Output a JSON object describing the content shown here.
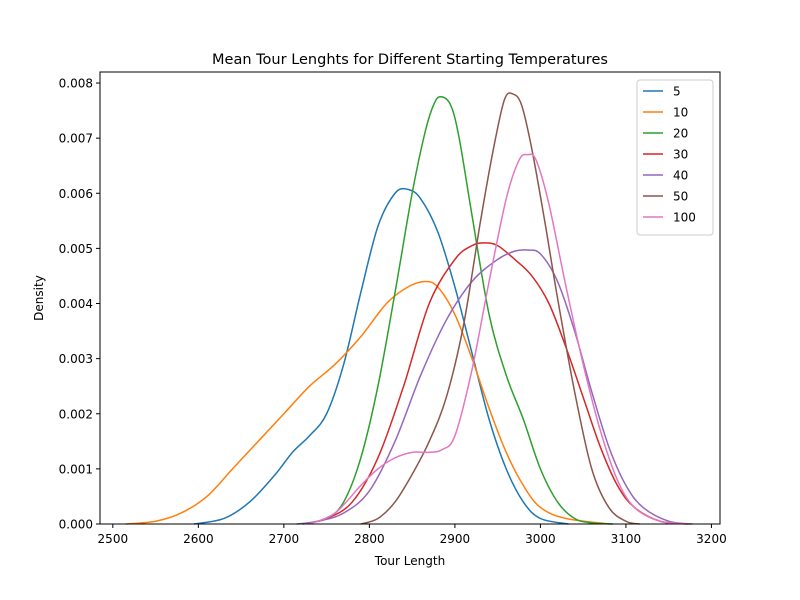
{
  "chart_data": {
    "type": "line",
    "title": "Mean Tour Lenghts for Different Starting Temperatures",
    "xlabel": "Tour Length",
    "ylabel": "Density",
    "xlim": [
      2485,
      3210
    ],
    "ylim": [
      0,
      0.0082
    ],
    "xticks": [
      2500,
      2600,
      2700,
      2800,
      2900,
      3000,
      3100,
      3200
    ],
    "xtick_labels": [
      "2500",
      "2600",
      "2700",
      "2800",
      "2900",
      "3000",
      "3100",
      "3200"
    ],
    "yticks": [
      0,
      0.001,
      0.002,
      0.003,
      0.004,
      0.005,
      0.006,
      0.007,
      0.008
    ],
    "ytick_labels": [
      "0.000",
      "0.001",
      "0.002",
      "0.003",
      "0.004",
      "0.005",
      "0.006",
      "0.007",
      "0.008"
    ],
    "grid": false,
    "legend_position": "top-right",
    "series": [
      {
        "name": "5",
        "color": "#1f77b4",
        "x": [
          2595,
          2630,
          2660,
          2690,
          2710,
          2730,
          2750,
          2770,
          2790,
          2810,
          2830,
          2845,
          2860,
          2880,
          2900,
          2920,
          2940,
          2960,
          2980,
          3000,
          3033
        ],
        "y": [
          0.0,
          0.0001,
          0.0004,
          0.0009,
          0.0013,
          0.0016,
          0.002,
          0.0029,
          0.0042,
          0.0054,
          0.006,
          0.00607,
          0.0059,
          0.0053,
          0.0043,
          0.0031,
          0.0019,
          0.001,
          0.0004,
          0.0001,
          0.0
        ]
      },
      {
        "name": "10",
        "color": "#ff7f0e",
        "x": [
          2515,
          2550,
          2580,
          2610,
          2640,
          2670,
          2700,
          2730,
          2760,
          2790,
          2820,
          2845,
          2865,
          2880,
          2900,
          2920,
          2940,
          2960,
          2980,
          3000,
          3030,
          3082
        ],
        "y": [
          0.0,
          5e-05,
          0.0002,
          0.0005,
          0.001,
          0.0015,
          0.002,
          0.0025,
          0.0029,
          0.0034,
          0.004,
          0.0043,
          0.0044,
          0.0043,
          0.0038,
          0.003,
          0.0021,
          0.0013,
          0.0007,
          0.0003,
          0.0001,
          0.0
        ]
      },
      {
        "name": "20",
        "color": "#2ca02c",
        "x": [
          2722,
          2750,
          2770,
          2790,
          2810,
          2830,
          2850,
          2865,
          2875,
          2883,
          2895,
          2905,
          2920,
          2940,
          2960,
          2980,
          3000,
          3020,
          3040,
          3060,
          3085
        ],
        "y": [
          0.0,
          0.0001,
          0.0004,
          0.0012,
          0.0025,
          0.0042,
          0.006,
          0.0071,
          0.0076,
          0.00775,
          0.0076,
          0.007,
          0.0056,
          0.0038,
          0.0027,
          0.0019,
          0.001,
          0.0004,
          0.0001,
          2e-05,
          0.0
        ]
      },
      {
        "name": "30",
        "color": "#d62728",
        "x": [
          2722,
          2750,
          2780,
          2810,
          2840,
          2870,
          2900,
          2920,
          2935,
          2950,
          2970,
          2990,
          3010,
          3030,
          3050,
          3070,
          3090,
          3110,
          3140,
          3172
        ],
        "y": [
          0.0,
          0.0001,
          0.0004,
          0.0012,
          0.0025,
          0.004,
          0.0048,
          0.00505,
          0.0051,
          0.00505,
          0.0048,
          0.0045,
          0.004,
          0.0032,
          0.0023,
          0.0014,
          0.0007,
          0.0003,
          5e-05,
          0.0
        ]
      },
      {
        "name": "40",
        "color": "#9467bd",
        "x": [
          2715,
          2740,
          2770,
          2800,
          2830,
          2860,
          2890,
          2920,
          2950,
          2970,
          2985,
          3000,
          3020,
          3040,
          3060,
          3080,
          3100,
          3120,
          3150,
          3178
        ],
        "y": [
          0.0,
          5e-05,
          0.0002,
          0.0006,
          0.0015,
          0.0027,
          0.0037,
          0.0044,
          0.0048,
          0.00495,
          0.00497,
          0.0049,
          0.0044,
          0.0035,
          0.0024,
          0.0014,
          0.0007,
          0.0003,
          5e-05,
          0.0
        ]
      },
      {
        "name": "50",
        "color": "#8c564b",
        "x": [
          2790,
          2810,
          2830,
          2850,
          2870,
          2890,
          2910,
          2930,
          2945,
          2958,
          2968,
          2978,
          2990,
          3005,
          3020,
          3040,
          3060,
          3080,
          3100,
          3116
        ],
        "y": [
          0.0,
          0.0001,
          0.0004,
          0.0009,
          0.0015,
          0.0023,
          0.0036,
          0.0055,
          0.0068,
          0.0077,
          0.0078,
          0.0076,
          0.0068,
          0.0055,
          0.0041,
          0.0024,
          0.001,
          0.0003,
          5e-05,
          0.0
        ]
      },
      {
        "name": "100",
        "color": "#e377c2",
        "x": [
          2730,
          2760,
          2790,
          2810,
          2830,
          2850,
          2870,
          2885,
          2900,
          2920,
          2940,
          2960,
          2975,
          2985,
          2995,
          3010,
          3030,
          3050,
          3070,
          3090,
          3110,
          3140,
          3176
        ],
        "y": [
          0.0,
          0.0002,
          0.0007,
          0.001,
          0.0012,
          0.0013,
          0.0013,
          0.00135,
          0.0016,
          0.0028,
          0.0044,
          0.0059,
          0.0066,
          0.0067,
          0.0066,
          0.0058,
          0.0043,
          0.0029,
          0.0017,
          0.0008,
          0.0003,
          5e-05,
          0.0
        ]
      }
    ]
  }
}
